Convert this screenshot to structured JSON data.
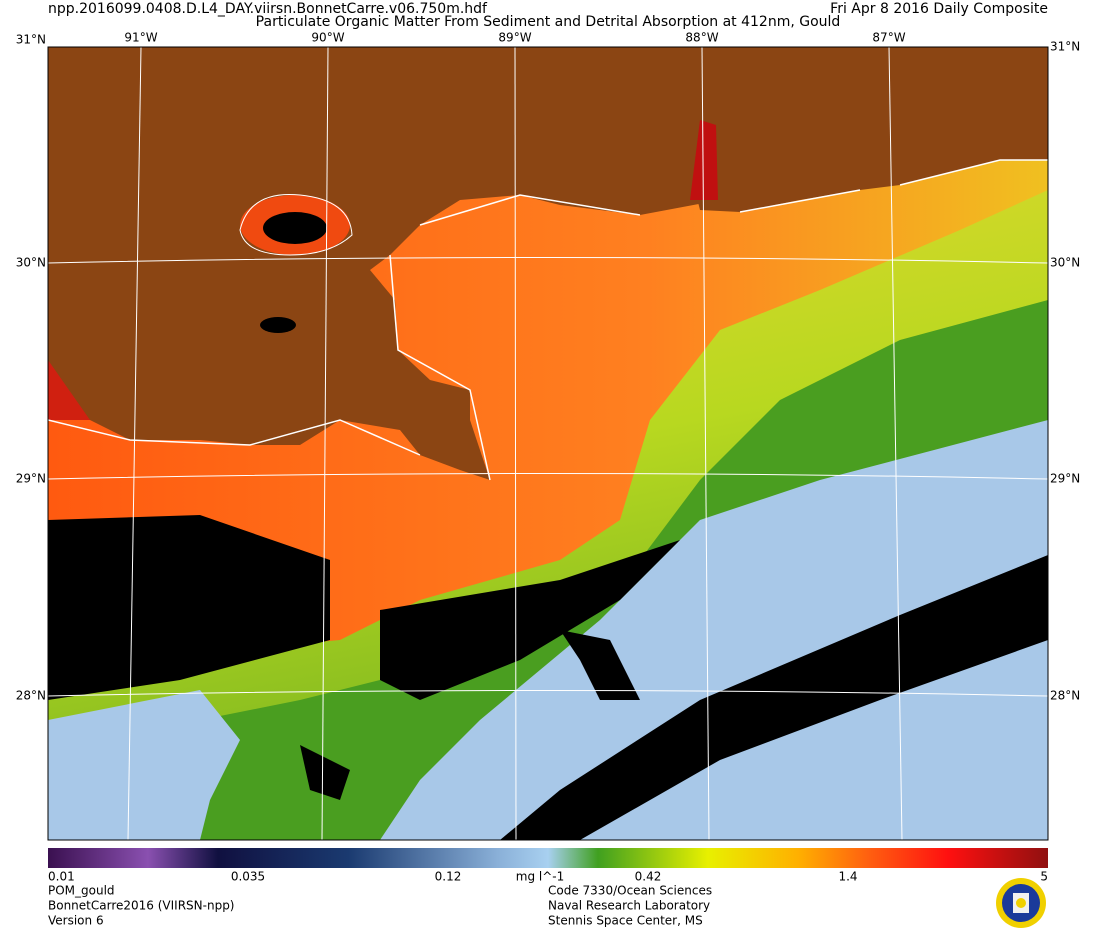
{
  "header": {
    "filename": "npp.2016099.0408.D.L4_DAY.viirsn.BonnetCarre.v06.750m.hdf",
    "title": "Particulate Organic Matter From Sediment and Detrital Absorption at 412nm, Gould",
    "date": "Fri Apr  8 2016 Daily Composite"
  },
  "map": {
    "longitude_labels": [
      "91°W",
      "90°W",
      "89°W",
      "88°W",
      "87°W"
    ],
    "latitude_labels": [
      "31°N",
      "30°N",
      "29°N",
      "28°N"
    ]
  },
  "colorbar": {
    "labels": [
      "0.01",
      "0.035",
      "0.12",
      "0.42",
      "1.4",
      "5"
    ],
    "unit": "mg l^-1"
  },
  "footer": {
    "left": [
      "POM_gould",
      "BonnetCarre2016 (VIIRSN-npp)",
      "Version 6"
    ],
    "right": [
      "Code 7330/Ocean Sciences",
      "Naval Research Laboratory",
      "Stennis Space Center, MS"
    ]
  }
}
